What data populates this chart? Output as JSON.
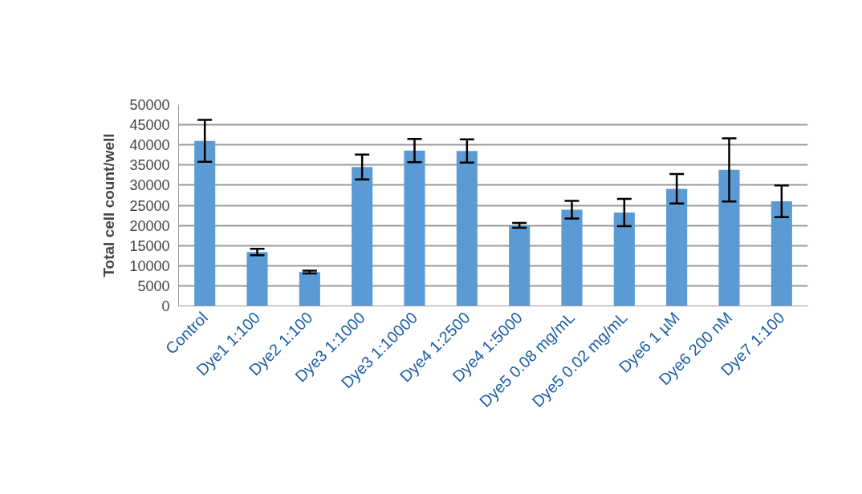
{
  "chart_data": {
    "type": "bar",
    "ylabel": "Total cell count/well",
    "categories": [
      "Control",
      "Dye1 1:100",
      "Dye2 1:100",
      "Dye3 1:1000",
      "Dye3 1:10000",
      "Dye4 1:2500",
      "Dye4 1:5000",
      "Dye5 0.08 mg/mL",
      "Dye5 0.02 mg/mL",
      "Dye6 1 µM",
      "Dye6 200 nM",
      "Dye7 1:100"
    ],
    "values": [
      41000,
      13400,
      8400,
      34500,
      38600,
      38500,
      20000,
      23900,
      23200,
      29100,
      33800,
      26000
    ],
    "errors": [
      5200,
      800,
      350,
      3100,
      2900,
      2900,
      600,
      2200,
      3400,
      3650,
      7850,
      3950
    ],
    "color": "#5b9bd5",
    "ylim": [
      0,
      50000
    ],
    "yticks": [
      0,
      5000,
      10000,
      15000,
      20000,
      25000,
      30000,
      35000,
      40000,
      45000,
      50000
    ],
    "grid": "y"
  }
}
